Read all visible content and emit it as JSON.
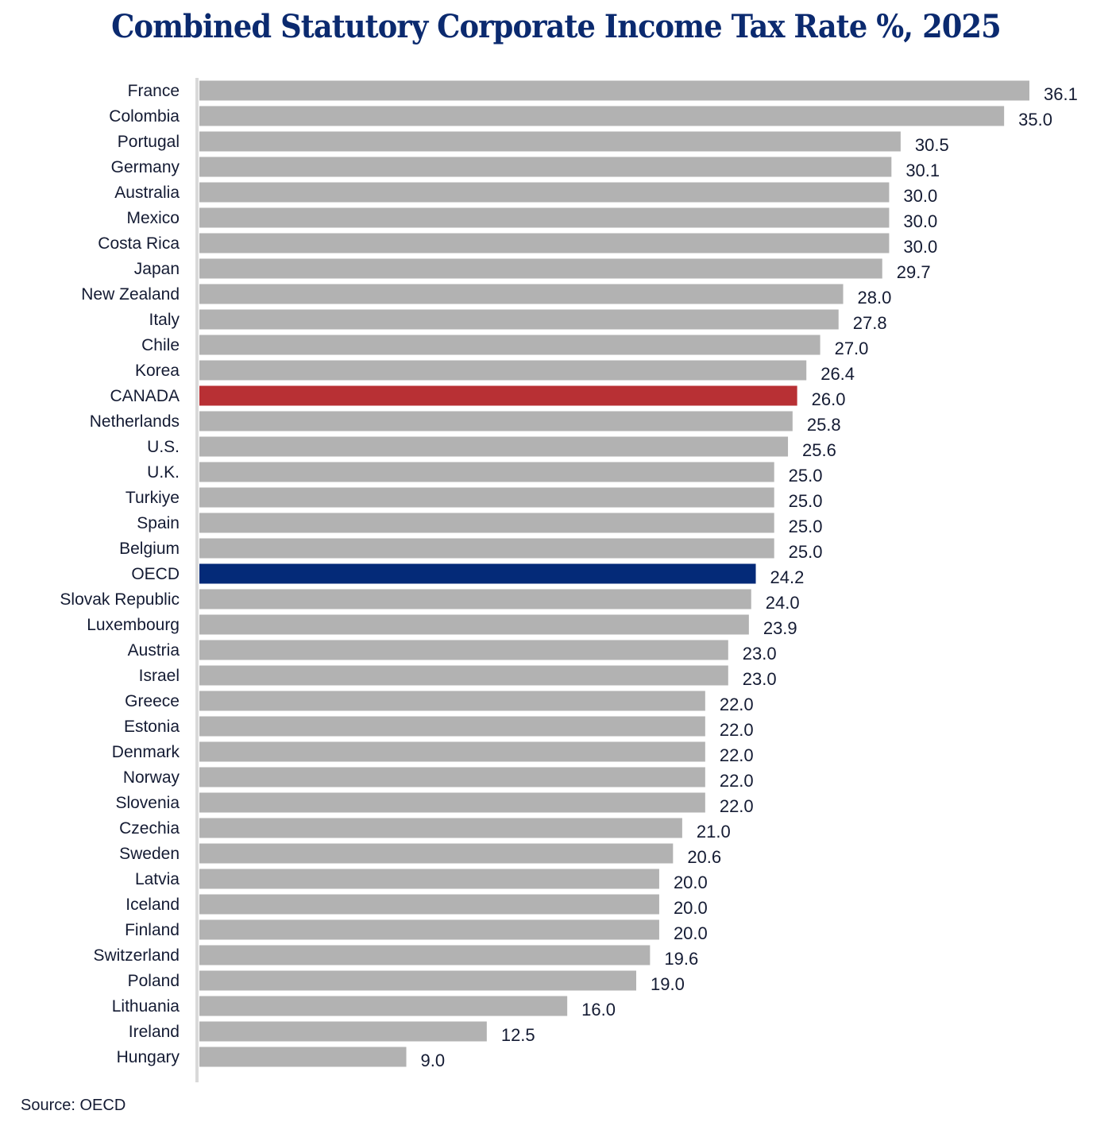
{
  "chart_data": {
    "type": "bar",
    "orientation": "horizontal",
    "title": "Combined Statutory Corporate Income Tax Rate %, 2025",
    "xlabel": "",
    "ylabel": "",
    "xlim": [
      0,
      36.1
    ],
    "grid": false,
    "legend": "none",
    "categories": [
      "France",
      "Colombia",
      "Portugal",
      "Germany",
      "Australia",
      "Mexico",
      "Costa Rica",
      "Japan",
      "New Zealand",
      "Italy",
      "Chile",
      "Korea",
      "CANADA",
      "Netherlands",
      "U.S.",
      "U.K.",
      "Turkiye",
      "Spain",
      "Belgium",
      "OECD",
      "Slovak Republic",
      "Luxembourg",
      "Austria",
      "Israel",
      "Greece",
      "Estonia",
      "Denmark",
      "Norway",
      "Slovenia",
      "Czechia",
      "Sweden",
      "Latvia",
      "Iceland",
      "Finland",
      "Switzerland",
      "Poland",
      "Lithuania",
      "Ireland",
      "Hungary"
    ],
    "values": [
      36.1,
      35.0,
      30.5,
      30.1,
      30.0,
      30.0,
      30.0,
      29.7,
      28.0,
      27.8,
      27.0,
      26.4,
      26.0,
      25.8,
      25.6,
      25.0,
      25.0,
      25.0,
      25.0,
      24.2,
      24.0,
      23.9,
      23.0,
      23.0,
      22.0,
      22.0,
      22.0,
      22.0,
      22.0,
      21.0,
      20.6,
      20.0,
      20.0,
      20.0,
      19.6,
      19.0,
      16.0,
      12.5,
      9.0
    ],
    "value_labels": [
      "36.1",
      "35.0",
      "30.5",
      "30.1",
      "30.0",
      "30.0",
      "30.0",
      "29.7",
      "28.0",
      "27.8",
      "27.0",
      "26.4",
      "26.0",
      "25.8",
      "25.6",
      "25.0",
      "25.0",
      "25.0",
      "25.0",
      "24.2",
      "24.0",
      "23.9",
      "23.0",
      "23.0",
      "22.0",
      "22.0",
      "22.0",
      "22.0",
      "22.0",
      "21.0",
      "20.6",
      "20.0",
      "20.0",
      "20.0",
      "19.6",
      "19.0",
      "16.0",
      "12.5",
      "9.0"
    ],
    "highlights": {
      "CANADA": "#b83034",
      "OECD": "#042a78"
    },
    "default_color": "#b2b2b2",
    "source": "Source: OECD"
  },
  "colors": {
    "title": "#0b2a6f",
    "text": "#141b33",
    "bar": "#b2b2b2",
    "axis": "#d9d9d9"
  }
}
